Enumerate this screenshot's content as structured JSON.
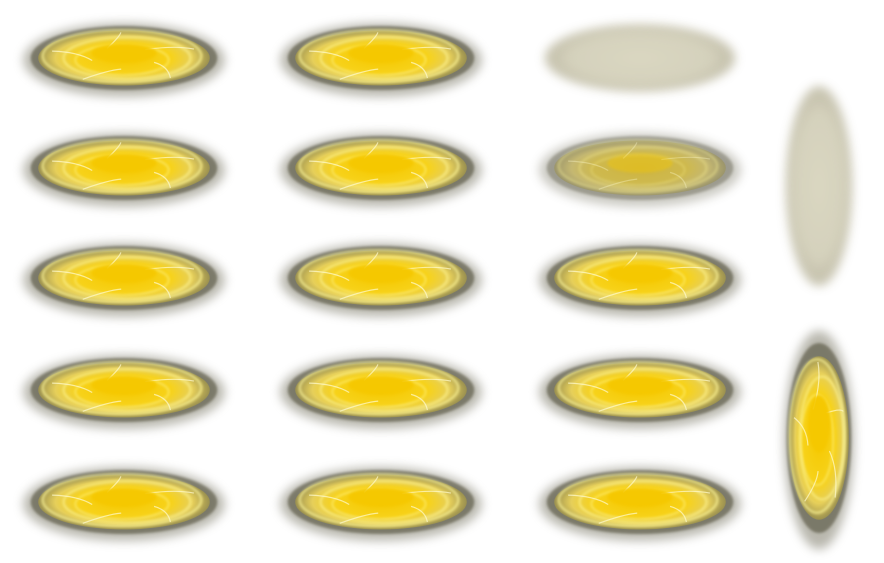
{
  "sprite_sheet": {
    "rows": [
      [
        {
          "state": "active"
        },
        {
          "state": "active"
        },
        {
          "state": "faded"
        }
      ],
      [
        {
          "state": "active"
        },
        {
          "state": "active"
        },
        {
          "state": "dim"
        }
      ],
      [
        {
          "state": "active"
        },
        {
          "state": "active"
        },
        {
          "state": "active"
        }
      ],
      [
        {
          "state": "active"
        },
        {
          "state": "active"
        },
        {
          "state": "active"
        }
      ],
      [
        {
          "state": "active"
        },
        {
          "state": "active"
        },
        {
          "state": "active"
        }
      ]
    ],
    "vertical_column": [
      {
        "state": "faded"
      },
      {
        "state": "active"
      }
    ]
  },
  "colors": {
    "background": "#ffffff",
    "core": "#f5c800",
    "glow": "#fff89a",
    "rim": "#4a4630",
    "smoke": "#8a8878",
    "faded": "#cfcbb4"
  }
}
